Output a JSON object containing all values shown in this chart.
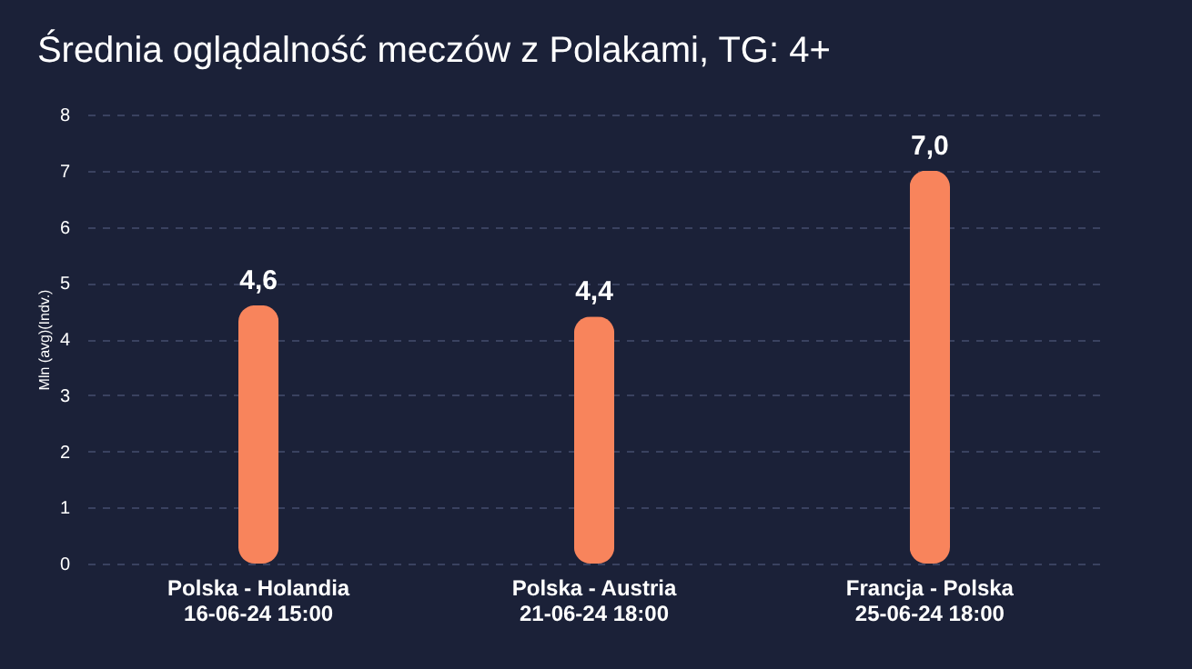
{
  "chart_data": {
    "type": "bar",
    "title": "Średnia oglądalność meczów z Polakami, TG: 4+",
    "ylabel": "Mln (avg)(Indv.)",
    "categories": [
      "Polska - Holandia\n16-06-24 15:00",
      "Polska - Austria\n21-06-24 18:00",
      "Francja - Polska\n25-06-24 18:00"
    ],
    "values": [
      4.6,
      4.4,
      7.0
    ],
    "value_labels": [
      "4,6",
      "4,4",
      "7,0"
    ],
    "color": "#f8845c",
    "ylim": [
      0,
      8
    ],
    "yticks": [
      0,
      1,
      2,
      3,
      4,
      5,
      6,
      7,
      8
    ],
    "grid": "y"
  }
}
